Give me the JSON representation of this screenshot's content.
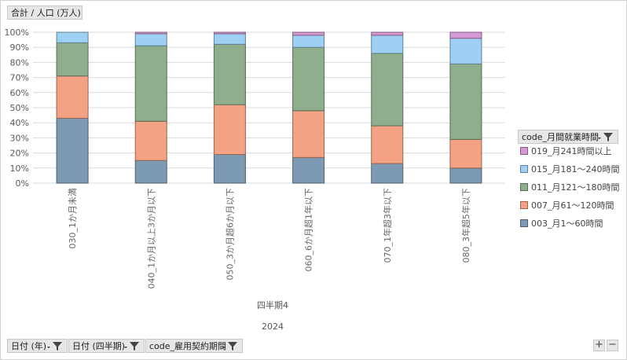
{
  "value_field": "合計 / 人口 (万人)",
  "legend_field": "code_月間就業時間",
  "axis_fields": [
    "日付 (年)",
    "日付 (四半期)",
    "code_雇用契約期間"
  ],
  "zoom_in": "+",
  "zoom_out": "−",
  "colors": {
    "003": "#7d9ab5",
    "007": "#f4a284",
    "011": "#8fae8c",
    "015": "#9dd0f2",
    "019": "#d59ad3"
  },
  "chart_data": {
    "type": "bar",
    "stacked": true,
    "percent": true,
    "ylim": [
      0,
      100
    ],
    "yticks": [
      "0%",
      "10%",
      "20%",
      "30%",
      "40%",
      "50%",
      "60%",
      "70%",
      "80%",
      "90%",
      "100%"
    ],
    "categories": [
      "030_1か月未満",
      "040_1か月以上3か月以下",
      "050_3か月超6か月以下",
      "060_6か月超1年以下",
      "070_1年超3年以下",
      "080_3年超5年以下"
    ],
    "group_labels": [
      "四半期4",
      "2024"
    ],
    "series": [
      {
        "name": "003_月1～60時間",
        "color_key": "003",
        "values": [
          43,
          15,
          19,
          17,
          13,
          10
        ]
      },
      {
        "name": "007_月61～120時間",
        "color_key": "007",
        "values": [
          28,
          26,
          33,
          31,
          25,
          19
        ]
      },
      {
        "name": "011_月121～180時間",
        "color_key": "011",
        "values": [
          22,
          50,
          40,
          42,
          48,
          50
        ]
      },
      {
        "name": "015_月181～240時間",
        "color_key": "015",
        "values": [
          7,
          8,
          7,
          8,
          12,
          17
        ]
      },
      {
        "name": "019_月241時間以上",
        "color_key": "019",
        "values": [
          0,
          1,
          1,
          2,
          2,
          4
        ]
      }
    ],
    "legend_position": "right",
    "grid": true
  }
}
